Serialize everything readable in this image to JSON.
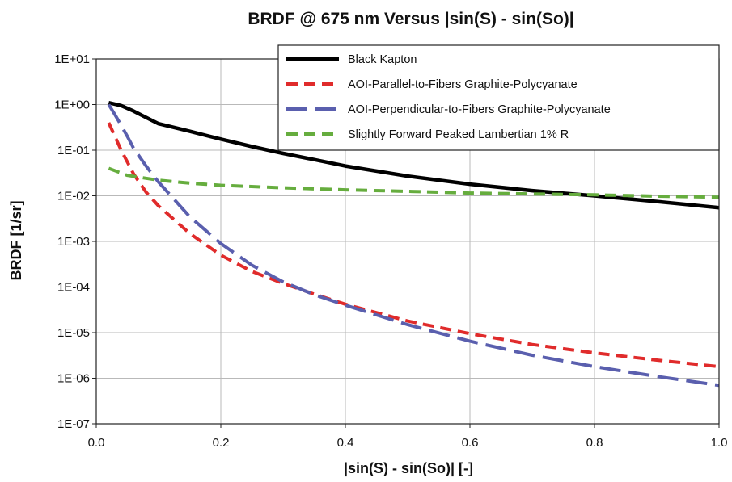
{
  "chart_data": {
    "type": "line",
    "title": "BRDF @ 675 nm Versus |sin(S) - sin(So)|",
    "xlabel": "|sin(S) - sin(So)| [-]",
    "ylabel": "BRDF [1/sr]",
    "xscale": "linear",
    "yscale": "log",
    "xlim": [
      0,
      1
    ],
    "ylim": [
      1e-07,
      10
    ],
    "grid": true,
    "legend_position": "top-right",
    "x_ticks": [
      0,
      0.2,
      0.4,
      0.6,
      0.8,
      1.0
    ],
    "x_tick_labels": [
      "0.0",
      "0.2",
      "0.4",
      "0.6",
      "0.8",
      "1.0"
    ],
    "y_ticks": [
      1e-07,
      1e-06,
      1e-05,
      0.0001,
      0.001,
      0.01,
      0.1,
      1,
      10
    ],
    "y_tick_labels": [
      "1E-07",
      "1E-06",
      "1E-05",
      "1E-04",
      "1E-03",
      "1E-02",
      "1E-01",
      "1E+00",
      "1E+01"
    ],
    "series": [
      {
        "name": "Black Kapton",
        "color": "#000000",
        "style": "solid",
        "x": [
          0.02,
          0.04,
          0.06,
          0.08,
          0.1,
          0.15,
          0.2,
          0.25,
          0.3,
          0.35,
          0.4,
          0.5,
          0.6,
          0.7,
          0.8,
          0.9,
          1.0
        ],
        "y": [
          1.1,
          0.95,
          0.72,
          0.52,
          0.38,
          0.26,
          0.175,
          0.12,
          0.085,
          0.062,
          0.045,
          0.027,
          0.018,
          0.013,
          0.01,
          0.0075,
          0.0055
        ]
      },
      {
        "name": "AOI-Parallel-to-Fibers Graphite-Polycyanate",
        "color": "#e02b2b",
        "style": "dashed",
        "x": [
          0.02,
          0.03,
          0.04,
          0.05,
          0.06,
          0.08,
          0.1,
          0.15,
          0.2,
          0.25,
          0.3,
          0.35,
          0.4,
          0.5,
          0.6,
          0.7,
          0.8,
          0.9,
          1.0
        ],
        "y": [
          0.4,
          0.2,
          0.1,
          0.055,
          0.03,
          0.012,
          0.006,
          0.0015,
          0.0005,
          0.00022,
          0.00012,
          7e-05,
          4.2e-05,
          1.8e-05,
          9.5e-06,
          5.5e-06,
          3.6e-06,
          2.5e-06,
          1.8e-06
        ]
      },
      {
        "name": "AOI-Perpendicular-to-Fibers Graphite-Polycyanate",
        "color": "#5a5fae",
        "style": "dashed",
        "x": [
          0.02,
          0.03,
          0.04,
          0.05,
          0.06,
          0.08,
          0.1,
          0.15,
          0.2,
          0.25,
          0.3,
          0.35,
          0.4,
          0.5,
          0.6,
          0.7,
          0.8,
          0.9,
          1.0
        ],
        "y": [
          1.0,
          0.6,
          0.35,
          0.2,
          0.11,
          0.045,
          0.02,
          0.0035,
          0.0009,
          0.0003,
          0.00013,
          6.8e-05,
          4e-05,
          1.5e-05,
          6.5e-06,
          3.2e-06,
          1.8e-06,
          1.1e-06,
          7e-07
        ]
      },
      {
        "name": "Slightly Forward Peaked Lambertian 1% R",
        "color": "#66ad3e",
        "style": "dashed",
        "x": [
          0.02,
          0.05,
          0.1,
          0.15,
          0.2,
          0.3,
          0.4,
          0.5,
          0.6,
          0.7,
          0.8,
          0.9,
          1.0
        ],
        "y": [
          0.04,
          0.028,
          0.022,
          0.019,
          0.017,
          0.015,
          0.0135,
          0.0125,
          0.0115,
          0.011,
          0.0105,
          0.0098,
          0.0093
        ]
      }
    ]
  }
}
